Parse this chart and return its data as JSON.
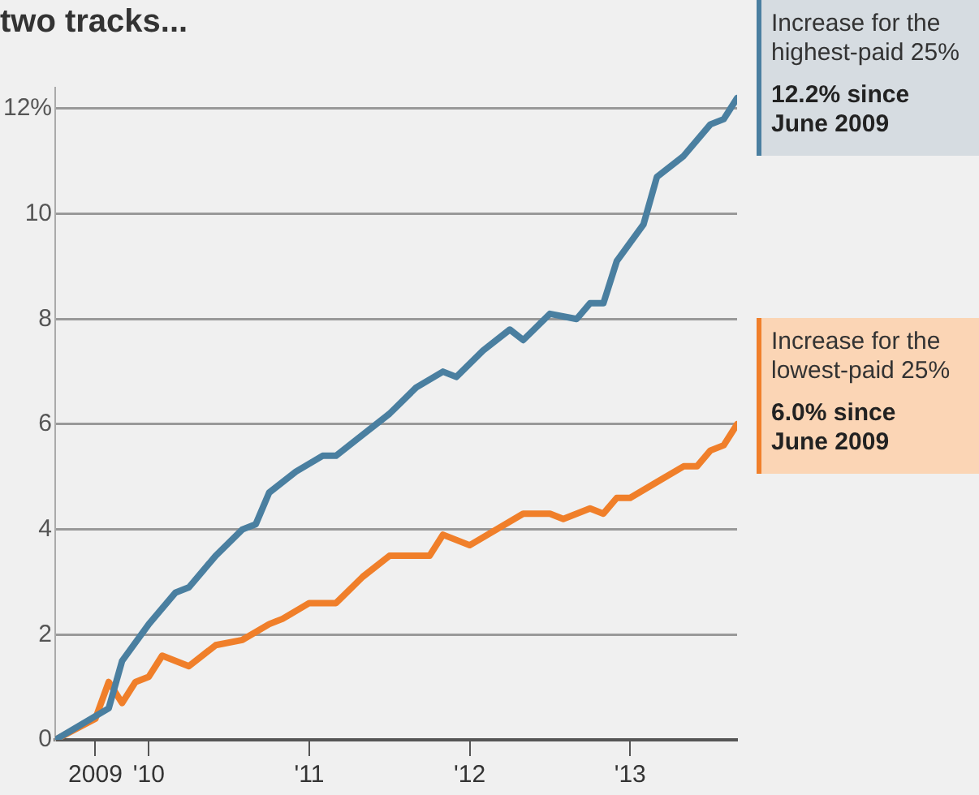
{
  "chart_data": {
    "type": "line",
    "title": "two tracks...",
    "xlim": [
      "2009-06",
      "2013-09"
    ],
    "xticks": [
      {
        "value": "2009-09",
        "label": "2009"
      },
      {
        "value": "2010-01",
        "label": "'10"
      },
      {
        "value": "2011-01",
        "label": "'11"
      },
      {
        "value": "2012-01",
        "label": "'12"
      },
      {
        "value": "2013-01",
        "label": "'13"
      }
    ],
    "ylim": [
      0,
      12.4
    ],
    "yticks": [
      0,
      2,
      4,
      6,
      8,
      10,
      {
        "value": 12,
        "label": "12%"
      }
    ],
    "grid": "y",
    "legend": "right",
    "marker": "none",
    "line_style": "solid",
    "series": [
      {
        "name": "Increase for the highest-paid 25%",
        "color": "#4a7fa0",
        "x": [
          "2009-06",
          "2009-10",
          "2009-11",
          "2010-01",
          "2010-03",
          "2010-04",
          "2010-06",
          "2010-08",
          "2010-09",
          "2010-10",
          "2010-12",
          "2011-02",
          "2011-03",
          "2011-05",
          "2011-07",
          "2011-09",
          "2011-11",
          "2011-12",
          "2012-02",
          "2012-04",
          "2012-05",
          "2012-07",
          "2012-09",
          "2012-10",
          "2012-11",
          "2012-12",
          "2013-02",
          "2013-03",
          "2013-05",
          "2013-07",
          "2013-08",
          "2013-09"
        ],
        "values": [
          0,
          0.6,
          1.5,
          2.2,
          2.8,
          2.9,
          3.5,
          4.0,
          4.1,
          4.7,
          5.1,
          5.4,
          5.4,
          5.8,
          6.2,
          6.7,
          7.0,
          6.9,
          7.4,
          7.8,
          7.6,
          8.1,
          8.0,
          8.3,
          8.3,
          9.1,
          9.8,
          10.7,
          11.1,
          11.7,
          11.8,
          12.2
        ]
      },
      {
        "name": "Increase for the lowest-paid 25%",
        "color": "#f07f2a",
        "x": [
          "2009-06",
          "2009-09",
          "2009-10",
          "2009-11",
          "2009-12",
          "2010-01",
          "2010-02",
          "2010-04",
          "2010-06",
          "2010-08",
          "2010-10",
          "2010-11",
          "2011-01",
          "2011-03",
          "2011-05",
          "2011-07",
          "2011-10",
          "2011-11",
          "2012-01",
          "2012-05",
          "2012-07",
          "2012-08",
          "2012-10",
          "2012-11",
          "2012-12",
          "2013-01",
          "2013-03",
          "2013-05",
          "2013-06",
          "2013-07",
          "2013-08",
          "2013-09"
        ],
        "values": [
          0,
          0.4,
          1.1,
          0.7,
          1.1,
          1.2,
          1.6,
          1.4,
          1.8,
          1.9,
          2.2,
          2.3,
          2.6,
          2.6,
          3.1,
          3.5,
          3.5,
          3.9,
          3.7,
          4.3,
          4.3,
          4.2,
          4.4,
          4.3,
          4.6,
          4.6,
          4.9,
          5.2,
          5.2,
          5.5,
          5.6,
          6.0
        ]
      }
    ],
    "annotations": [
      "12.2% since June 2009",
      "6.0% since June 2009"
    ]
  }
}
